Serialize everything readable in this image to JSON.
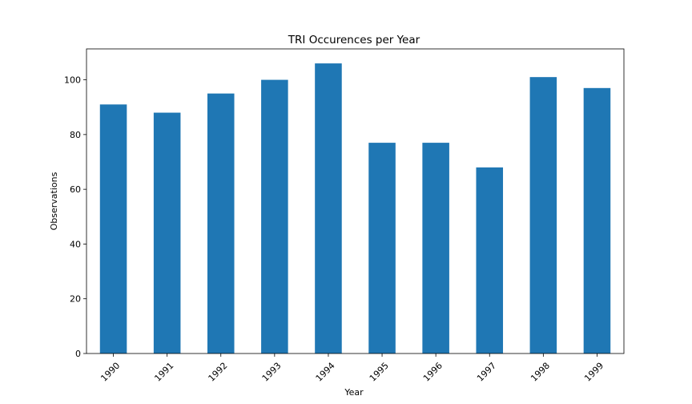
{
  "chart_data": {
    "type": "bar",
    "title": "TRI Occurences per Year",
    "xlabel": "Year",
    "ylabel": "Observations",
    "categories": [
      "1990",
      "1991",
      "1992",
      "1993",
      "1994",
      "1995",
      "1996",
      "1997",
      "1998",
      "1999"
    ],
    "values": [
      91,
      88,
      95,
      100,
      106,
      77,
      77,
      68,
      101,
      97
    ],
    "ylim": [
      0,
      111.3
    ],
    "yticks": [
      0,
      20,
      40,
      60,
      80,
      100
    ],
    "bar_color": "#1f77b4",
    "grid": false,
    "legend": "none"
  }
}
